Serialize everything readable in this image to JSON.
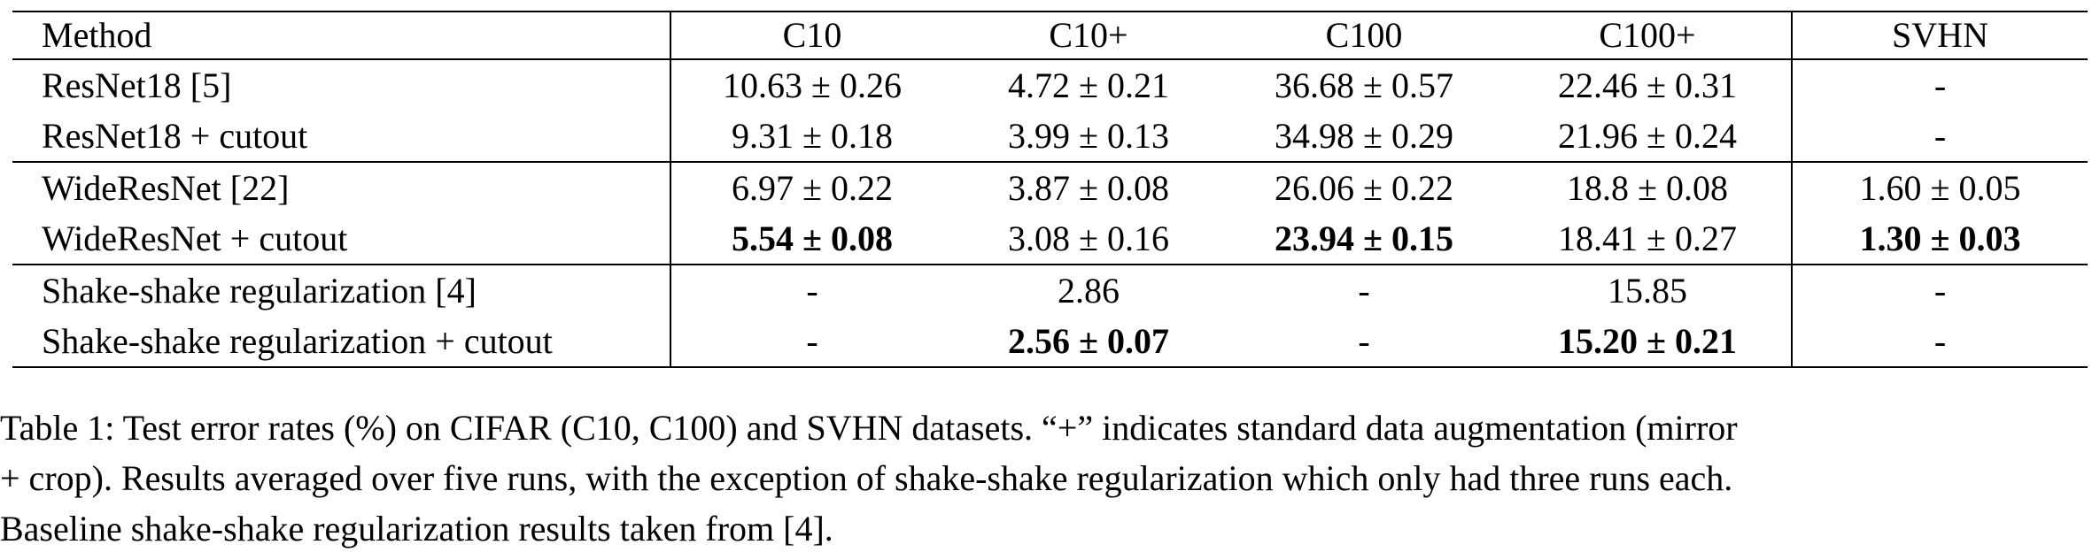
{
  "table": {
    "headers": [
      "Method",
      "C10",
      "C10+",
      "C100",
      "C100+",
      "SVHN"
    ],
    "groups": [
      {
        "rows": [
          {
            "method": "ResNet18 [5]",
            "cells": [
              "10.63 ± 0.26",
              "4.72 ± 0.21",
              "36.68 ± 0.57",
              "22.46 ± 0.31",
              "-"
            ],
            "bold": [
              false,
              false,
              false,
              false,
              false
            ]
          },
          {
            "method": "ResNet18 + cutout",
            "cells": [
              "9.31 ± 0.18",
              "3.99 ± 0.13",
              "34.98 ± 0.29",
              "21.96 ± 0.24",
              "-"
            ],
            "bold": [
              false,
              false,
              false,
              false,
              false
            ]
          }
        ]
      },
      {
        "rows": [
          {
            "method": "WideResNet [22]",
            "cells": [
              "6.97 ± 0.22",
              "3.87 ± 0.08",
              "26.06 ± 0.22",
              "18.8 ± 0.08",
              "1.60 ± 0.05"
            ],
            "bold": [
              false,
              false,
              false,
              false,
              false
            ]
          },
          {
            "method": "WideResNet + cutout",
            "cells": [
              "5.54 ± 0.08",
              "3.08 ± 0.16",
              "23.94 ± 0.15",
              "18.41 ± 0.27",
              "1.30 ± 0.03"
            ],
            "bold": [
              true,
              false,
              true,
              false,
              true
            ]
          }
        ]
      },
      {
        "rows": [
          {
            "method": "Shake-shake regularization [4]",
            "cells": [
              "-",
              "2.86",
              "-",
              "15.85",
              "-"
            ],
            "bold": [
              false,
              false,
              false,
              false,
              false
            ]
          },
          {
            "method": "Shake-shake regularization + cutout",
            "cells": [
              "-",
              "2.56 ± 0.07",
              "-",
              "15.20 ± 0.21",
              "-"
            ],
            "bold": [
              false,
              true,
              false,
              true,
              false
            ]
          }
        ]
      }
    ]
  },
  "caption": {
    "lines": [
      "Table 1: Test error rates (%) on CIFAR (C10, C100) and SVHN datasets. “+” indicates standard data augmentation (mirror",
      "+ crop). Results averaged over five runs, with the exception of shake-shake regularization which only had three runs each.",
      "Baseline shake-shake regularization results taken from [4]."
    ]
  }
}
